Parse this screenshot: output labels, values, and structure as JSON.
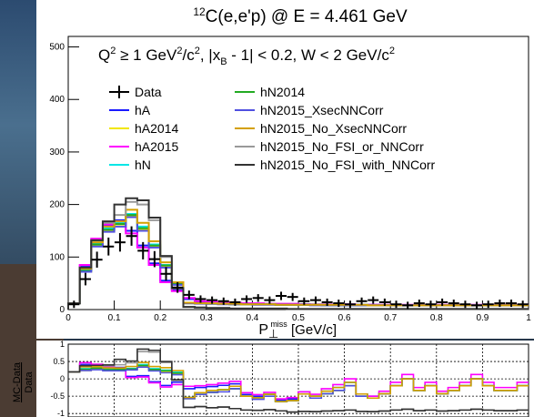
{
  "chart_data": {
    "type": "histogram",
    "title": "12C(e,e'p) @ E = 4.461 GeV",
    "title_parts": {
      "superscript": "12",
      "rest": "C(e,e'p) @ E = 4.461 GeV"
    },
    "cuts_text": {
      "q2": "Q",
      "q2_sup": "2",
      "q2_rest": " ≥ 1 GeV",
      "unit_sup": "2",
      "unit_rest": "/c",
      "unit_sup2": "2",
      "xb": ", |x",
      "xb_sub": "B",
      "xb_rest": " - 1| < 0.2, W < 2 GeV/c",
      "w_sup": "2"
    },
    "xlabel": "P",
    "xlabel_sub": "⊥",
    "xlabel_sup": "miss",
    "xlabel_unit": " [GeV/c]",
    "ratio_ylabel_num": "MC-Data",
    "ratio_ylabel_den": "Data",
    "xlim": [
      0,
      1.0
    ],
    "ylim": [
      0,
      520
    ],
    "ratio_ylim": [
      -1.1,
      1.0
    ],
    "x_ticks": [
      0,
      0.1,
      0.2,
      0.3,
      0.4,
      0.5,
      0.6,
      0.7,
      0.8,
      0.9,
      1
    ],
    "y_ticks": [
      0,
      100,
      200,
      300,
      400,
      500
    ],
    "ratio_y_ticks": [
      "-1",
      "-0.5",
      "0",
      "0.5",
      "1"
    ],
    "ratio_y_tick_values": [
      -1,
      -0.5,
      0,
      0.5,
      1
    ],
    "legend": [
      {
        "name": "Data",
        "color": "#000000",
        "marker": "cross"
      },
      {
        "name": "hA",
        "color": "#1a1aff"
      },
      {
        "name": "hA2014",
        "color": "#f2e600"
      },
      {
        "name": "hA2015",
        "color": "#ff00ff"
      },
      {
        "name": "hN",
        "color": "#00e6e6"
      },
      {
        "name": "hN2014",
        "color": "#22aa22"
      },
      {
        "name": "hN2015_XsecNNCorr",
        "color": "#5050e0"
      },
      {
        "name": "hN2015_No_XsecNNCorr",
        "color": "#d4a000"
      },
      {
        "name": "hN2015_No_FSI_or_NNCorr",
        "color": "#999999"
      },
      {
        "name": "hN2015_No_FSI_with_NNCorr",
        "color": "#333333"
      }
    ],
    "bin_width": 0.025,
    "data": {
      "x": [
        0.0125,
        0.0375,
        0.0625,
        0.0875,
        0.1125,
        0.1375,
        0.1625,
        0.1875,
        0.2125,
        0.2375,
        0.2625,
        0.2875,
        0.3125,
        0.3375,
        0.3625,
        0.3875,
        0.4125,
        0.4375,
        0.4625,
        0.4875,
        0.5125,
        0.5375,
        0.5625,
        0.5875,
        0.6125,
        0.6375,
        0.6625,
        0.6875,
        0.7125,
        0.7375,
        0.7625,
        0.7875,
        0.8125,
        0.8375,
        0.8625,
        0.8875,
        0.9125,
        0.9375,
        0.9625,
        0.9875
      ],
      "y": [
        10,
        58,
        95,
        120,
        128,
        140,
        112,
        96,
        68,
        42,
        28,
        20,
        18,
        16,
        14,
        20,
        22,
        18,
        26,
        24,
        16,
        18,
        14,
        12,
        10,
        16,
        18,
        14,
        10,
        8,
        12,
        10,
        14,
        12,
        10,
        8,
        10,
        12,
        12,
        10
      ]
    },
    "hA": [
      12,
      82,
      132,
      160,
      170,
      150,
      122,
      88,
      55,
      38,
      20,
      15,
      14,
      13,
      12,
      11,
      11,
      10,
      10,
      10,
      10,
      9,
      9,
      9,
      9,
      9,
      9,
      8,
      8,
      8,
      8,
      8,
      8,
      8,
      8,
      8,
      8,
      8,
      8,
      8
    ],
    "hA2014": [
      12,
      72,
      122,
      150,
      162,
      178,
      152,
      120,
      82,
      48,
      12,
      12,
      11,
      11,
      10,
      10,
      10,
      10,
      9,
      9,
      9,
      9,
      8,
      8,
      8,
      8,
      8,
      8,
      8,
      8,
      8,
      8,
      8,
      8,
      8,
      8,
      8,
      8,
      8,
      8
    ],
    "hA2015": [
      12,
      85,
      135,
      162,
      168,
      145,
      118,
      85,
      52,
      35,
      22,
      16,
      15,
      14,
      13,
      12,
      12,
      11,
      11,
      11,
      10,
      10,
      10,
      10,
      10,
      9,
      9,
      9,
      9,
      9,
      9,
      9,
      9,
      9,
      9,
      9,
      9,
      9,
      9,
      9
    ],
    "hN": [
      12,
      75,
      126,
      155,
      165,
      182,
      158,
      124,
      85,
      50,
      13,
      12,
      12,
      11,
      11,
      10,
      10,
      10,
      9,
      9,
      9,
      9,
      9,
      9,
      9,
      9,
      8,
      8,
      8,
      8,
      8,
      8,
      8,
      8,
      8,
      8,
      8,
      8,
      8,
      8
    ],
    "hN2014": [
      12,
      74,
      124,
      152,
      163,
      180,
      155,
      122,
      84,
      49,
      12,
      12,
      11,
      11,
      10,
      10,
      10,
      10,
      9,
      9,
      9,
      9,
      8,
      8,
      8,
      8,
      8,
      8,
      8,
      8,
      8,
      8,
      8,
      8,
      8,
      8,
      8,
      8,
      8,
      8
    ],
    "hN2015_XsecNNCorr": [
      12,
      72,
      120,
      148,
      158,
      176,
      150,
      118,
      80,
      47,
      12,
      11,
      11,
      10,
      10,
      10,
      9,
      9,
      9,
      9,
      9,
      8,
      8,
      8,
      8,
      8,
      8,
      8,
      8,
      8,
      8,
      8,
      8,
      8,
      8,
      8,
      8,
      8,
      8,
      8
    ],
    "hN2015_No_XsecNNCorr": [
      12,
      78,
      128,
      158,
      168,
      190,
      165,
      130,
      90,
      52,
      13,
      12,
      12,
      11,
      11,
      10,
      10,
      10,
      9,
      9,
      9,
      9,
      9,
      9,
      9,
      9,
      8,
      8,
      8,
      8,
      8,
      8,
      8,
      8,
      8,
      8,
      8,
      8,
      8,
      8
    ],
    "hN2015_No_FSI_or_NNCorr": [
      12,
      80,
      132,
      165,
      180,
      205,
      200,
      170,
      100,
      40,
      5,
      4,
      3,
      3,
      2,
      2,
      2,
      2,
      2,
      1,
      1,
      1,
      1,
      1,
      1,
      1,
      1,
      1,
      1,
      1,
      1,
      1,
      1,
      1,
      1,
      1,
      1,
      1,
      1,
      1
    ],
    "hN2015_No_FSI_with_NNCorr": [
      12,
      80,
      132,
      168,
      200,
      212,
      208,
      175,
      102,
      41,
      5,
      4,
      3,
      3,
      2,
      2,
      2,
      2,
      2,
      1,
      1,
      1,
      1,
      1,
      1,
      1,
      1,
      1,
      1,
      1,
      1,
      1,
      1,
      1,
      1,
      1,
      1,
      1,
      1,
      1
    ]
  }
}
